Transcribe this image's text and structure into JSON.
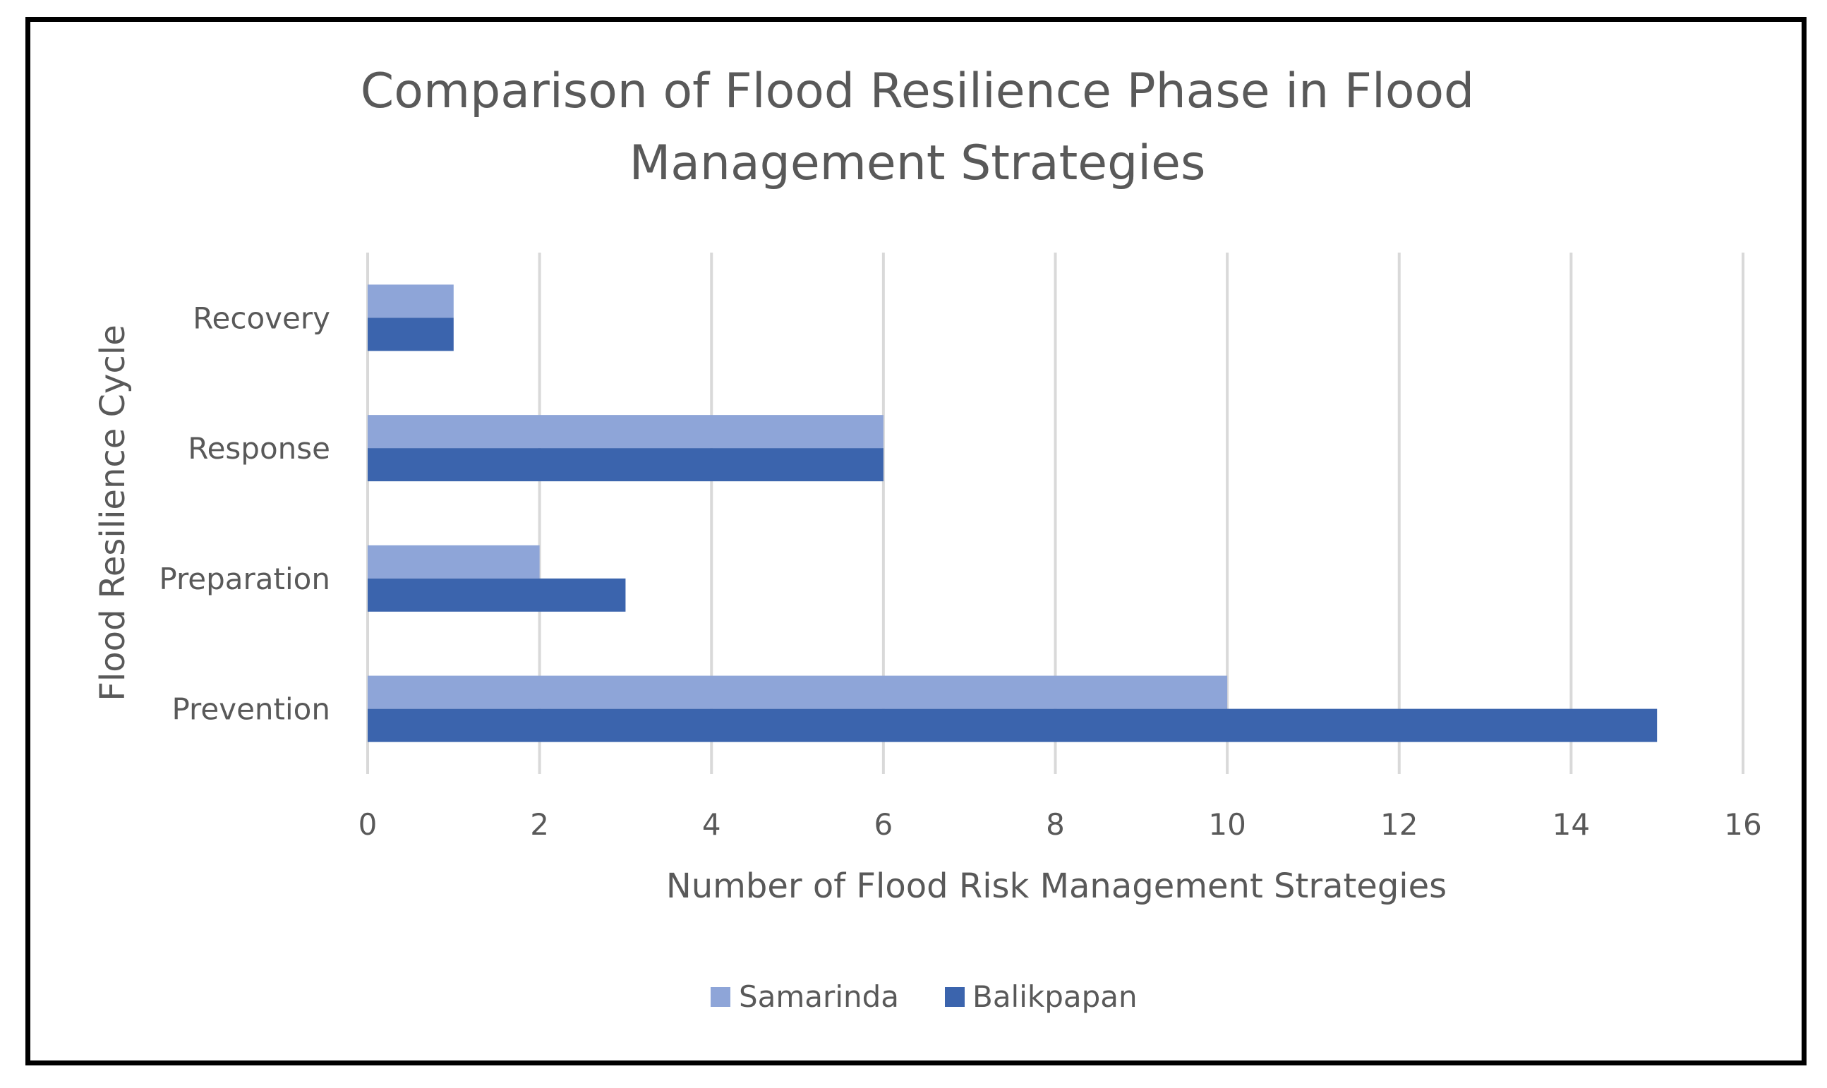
{
  "chart_data": {
    "type": "bar",
    "orientation": "horizontal",
    "title_lines": [
      "Comparison of Flood Resilience Phase in Flood",
      "Management Strategies"
    ],
    "categories": [
      "Prevention",
      "Preparation",
      "Response",
      "Recovery"
    ],
    "series": [
      {
        "name": "Samarinda",
        "color": "#8EA5D8",
        "values": [
          10,
          2,
          6,
          1
        ]
      },
      {
        "name": "Balikpapan",
        "color": "#3B64AD",
        "values": [
          15,
          3,
          6,
          1
        ]
      }
    ],
    "xlabel": "Number of Flood Risk Management Strategies",
    "ylabel": "Flood Resilience Cycle",
    "xlim": [
      0,
      16
    ],
    "xticks": [
      "0",
      "2",
      "4",
      "6",
      "8",
      "10",
      "12",
      "14",
      "16"
    ],
    "grid": true,
    "legend_position": "bottom"
  },
  "colors": {
    "text": "#595959",
    "gridline": "#D9D9D9",
    "frame": "#000000"
  }
}
